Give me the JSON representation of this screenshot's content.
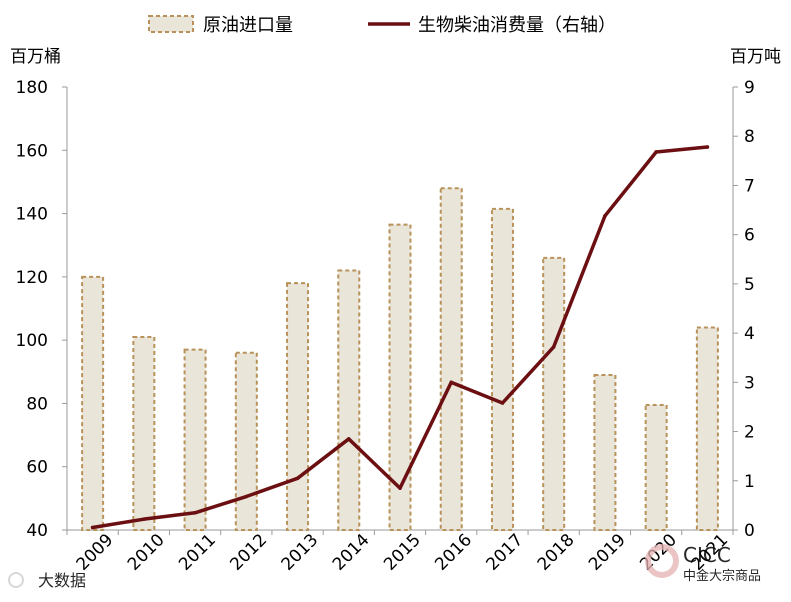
{
  "chart_data": {
    "type": "bar",
    "categories": [
      "2009",
      "2010",
      "2011",
      "2012",
      "2013",
      "2014",
      "2015",
      "2016",
      "2017",
      "2018",
      "2019",
      "2020",
      "2021"
    ],
    "series": [
      {
        "name": "原油进口量",
        "type": "bar",
        "axis": "left",
        "values": [
          120,
          101,
          97,
          96,
          118,
          122,
          136.5,
          148,
          141.5,
          126,
          89,
          79.5,
          104
        ]
      },
      {
        "name": "生物柴油消费量（右轴）",
        "type": "line",
        "axis": "right",
        "values": [
          0.05,
          0.22,
          0.35,
          0.68,
          1.05,
          1.85,
          0.85,
          3.0,
          2.58,
          3.72,
          6.38,
          7.68,
          7.78
        ]
      }
    ],
    "y_left": {
      "unit": "百万桶",
      "range": [
        40,
        180
      ],
      "ticks": [
        40,
        60,
        80,
        100,
        120,
        140,
        160,
        180
      ]
    },
    "y_right": {
      "unit": "百万吨",
      "range": [
        0,
        9
      ],
      "ticks": [
        0,
        1,
        2,
        3,
        4,
        5,
        6,
        7,
        8,
        9
      ]
    },
    "legend_position": "top",
    "grid": false,
    "colors": {
      "bar_fill": "#e9e5d9",
      "bar_border": "#b8925a",
      "line": "#6b0f12"
    }
  },
  "watermarks": {
    "bottom_left": "大数据",
    "bottom_right_top": "CICC",
    "bottom_right_bottom": "中金大宗商品"
  }
}
